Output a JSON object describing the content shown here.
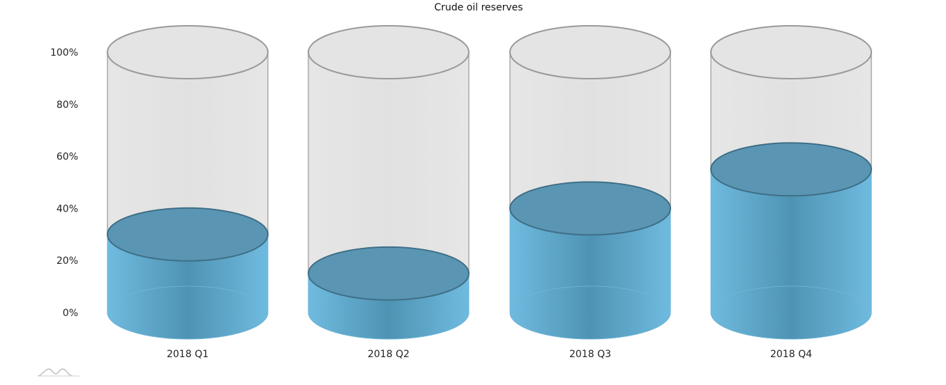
{
  "chart_data": {
    "type": "bar",
    "title": "Crude oil reserves",
    "categories": [
      "2018 Q1",
      "2018 Q2",
      "2018 Q3",
      "2018 Q4"
    ],
    "values": [
      30,
      15,
      40,
      55
    ],
    "capacity": 100,
    "ylim": [
      0,
      100
    ],
    "yticks": [
      "0%",
      "20%",
      "40%",
      "60%",
      "80%",
      "100%"
    ],
    "ytick_values": [
      0,
      20,
      40,
      60,
      80,
      100
    ],
    "grid": false,
    "style": "3d-cylinder",
    "colors": {
      "fill": "#67b7dc",
      "fill_top": "#5a96b3",
      "fill_dark": "#4a8aa8",
      "empty": "#e4e4e4",
      "empty_stroke": "#a8a8a8",
      "top_stroke": "#3e6e86"
    }
  },
  "logo": {
    "icon": "amcharts-logo-icon"
  }
}
